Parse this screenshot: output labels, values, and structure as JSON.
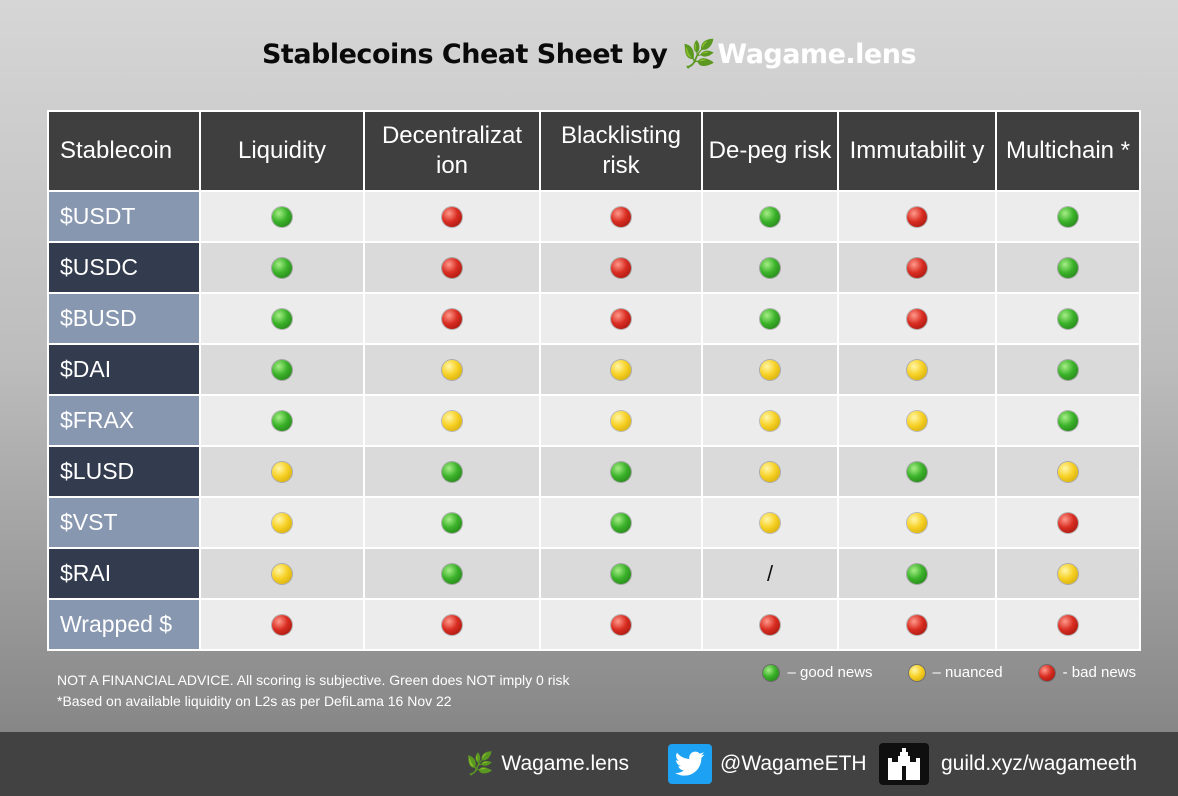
{
  "title": {
    "prefix": "Stablecoins Cheat Sheet by",
    "leaf": "🌿",
    "brand": "Wagame.lens"
  },
  "table": {
    "headers": [
      "Stablecoin",
      "Liquidity",
      "Decentralizat ion",
      "Blacklisting risk",
      "De-peg risk",
      "Immutabilit y",
      "Multichain *"
    ],
    "rows": [
      {
        "name": "$USDT",
        "ratings": [
          "green",
          "red",
          "red",
          "green",
          "red",
          "green"
        ]
      },
      {
        "name": "$USDC",
        "ratings": [
          "green",
          "red",
          "red",
          "green",
          "red",
          "green"
        ]
      },
      {
        "name": "$BUSD",
        "ratings": [
          "green",
          "red",
          "red",
          "green",
          "red",
          "green"
        ]
      },
      {
        "name": "$DAI",
        "ratings": [
          "green",
          "yellow",
          "yellow",
          "yellow",
          "yellow",
          "green"
        ]
      },
      {
        "name": "$FRAX",
        "ratings": [
          "green",
          "yellow",
          "yellow",
          "yellow",
          "yellow",
          "green"
        ]
      },
      {
        "name": "$LUSD",
        "ratings": [
          "yellow",
          "green",
          "green",
          "yellow",
          "green",
          "yellow"
        ]
      },
      {
        "name": "$VST",
        "ratings": [
          "yellow",
          "green",
          "green",
          "yellow",
          "yellow",
          "red"
        ]
      },
      {
        "name": "$RAI",
        "ratings": [
          "yellow",
          "green",
          "green",
          "/",
          "green",
          "yellow"
        ]
      },
      {
        "name": "Wrapped $",
        "ratings": [
          "red",
          "red",
          "red",
          "red",
          "red",
          "red"
        ]
      }
    ]
  },
  "notes": {
    "line1": "NOT A FINANCIAL ADVICE. All scoring is subjective. Green does NOT imply 0 risk",
    "line2": "*Based on available liquidity on L2s as per DefiLama 16 Nov 22"
  },
  "legend": [
    {
      "color": "green",
      "label": "– good news"
    },
    {
      "color": "yellow",
      "label": "– nuanced"
    },
    {
      "color": "red",
      "label": "- bad news"
    }
  ],
  "footer": {
    "lens": "Wagame.lens",
    "twitter": "@WagameETH",
    "guild": "guild.xyz/wagameeth"
  },
  "icons": [
    "leaf-icon",
    "twitter-icon",
    "guild-castle-icon"
  ],
  "colors": {
    "good": "#3bb22a",
    "nuanced": "#f7d125",
    "bad": "#d92d22",
    "header_bg": "#3f3f3f",
    "name_odd_bg": "#8897b0",
    "name_even_bg": "#333c4e",
    "footer_bg": "#424242",
    "twitter_blue": "#1da1f2"
  }
}
